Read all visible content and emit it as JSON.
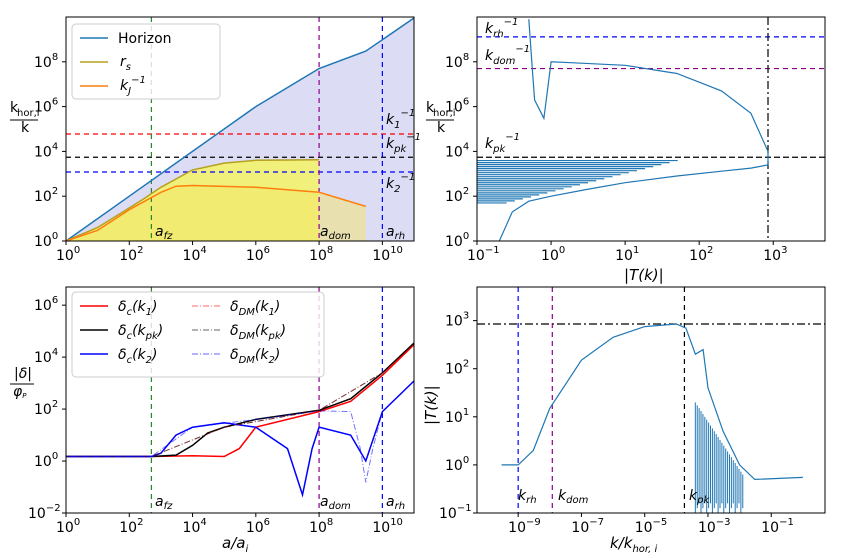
{
  "colors": {
    "horizon": "#1f77b4",
    "rs": "#b5a020",
    "kj": "#ff7f0e",
    "red": "#ff0000",
    "black": "#000000",
    "blue": "#0000ff",
    "green": "#228b22",
    "purple": "#8b008b",
    "fillHorizon": "#dcdcf5",
    "fillRs": "#f0f07a"
  },
  "chart_data": [
    {
      "id": "top-left",
      "type": "line",
      "xlim": [
        1,
        100000000000
      ],
      "ylim": [
        1,
        10000000000
      ],
      "xscale": "log",
      "yscale": "log",
      "xticks": [
        {
          "b": "10",
          "e": "0"
        },
        {
          "b": "10",
          "e": "2"
        },
        {
          "b": "10",
          "e": "4"
        },
        {
          "b": "10",
          "e": "6"
        },
        {
          "b": "10",
          "e": "8"
        },
        {
          "b": "10",
          "e": "10"
        }
      ],
      "yticks": [
        {
          "b": "10",
          "e": "0"
        },
        {
          "b": "10",
          "e": "2"
        },
        {
          "b": "10",
          "e": "4"
        },
        {
          "b": "10",
          "e": "6"
        },
        {
          "b": "10",
          "e": "8"
        }
      ],
      "ylabel": {
        "num": "k_hor,i",
        "den": "k"
      },
      "legend": [
        "Horizon",
        "r_s",
        "k_J^-1"
      ],
      "series": [
        {
          "name": "Horizon",
          "x": [
            1,
            100,
            10000,
            1000000,
            100000000,
            3000000000,
            100000000000
          ],
          "y": [
            1,
            100,
            10000,
            1000000,
            50000000,
            300000000,
            9000000000
          ]
        },
        {
          "name": "r_s",
          "x": [
            1,
            10,
            100,
            300,
            1000,
            10000,
            100000,
            1000000,
            100000000
          ],
          "y": [
            1,
            4,
            30,
            80,
            250,
            1500,
            3000,
            4000,
            4200
          ]
        },
        {
          "name": "k_J^-1",
          "x": [
            1,
            10,
            100,
            1000,
            3000,
            10000,
            1000000,
            100000000,
            3000000000
          ],
          "y": [
            1,
            3,
            25,
            150,
            280,
            300,
            250,
            150,
            35
          ]
        }
      ],
      "hlines": [
        {
          "label": "k_1^-1",
          "y": 60000,
          "color": "red"
        },
        {
          "label": "k_pk^-1",
          "y": 5500,
          "color": "black"
        },
        {
          "label": "k_2^-1",
          "y": 1200,
          "color": "blue"
        }
      ],
      "vlines": [
        {
          "label": "a_fz",
          "x": 500,
          "color": "green"
        },
        {
          "label": "a_dom",
          "x": 100000000,
          "color": "purple"
        },
        {
          "label": "a_rh",
          "x": 10000000000,
          "color": "blue"
        }
      ]
    },
    {
      "id": "top-right",
      "type": "line",
      "xlim": [
        0.1,
        5000
      ],
      "ylim": [
        1,
        10000000000
      ],
      "xscale": "log",
      "yscale": "log",
      "xticks": [
        {
          "b": "10",
          "e": "−1"
        },
        {
          "b": "10",
          "e": "0"
        },
        {
          "b": "10",
          "e": "1"
        },
        {
          "b": "10",
          "e": "2"
        },
        {
          "b": "10",
          "e": "3"
        }
      ],
      "yticks": [
        {
          "b": "10",
          "e": "0"
        },
        {
          "b": "10",
          "e": "2"
        },
        {
          "b": "10",
          "e": "4"
        },
        {
          "b": "10",
          "e": "6"
        },
        {
          "b": "10",
          "e": "8"
        }
      ],
      "xlabel": "|T(k)|",
      "ylabel": {
        "num": "k_hor,i",
        "den": "k"
      },
      "series": [
        {
          "name": "T(k)",
          "x": [
            0.5,
            0.55,
            0.6,
            0.8,
            1,
            2,
            10,
            50,
            200,
            500,
            850,
            850,
            500,
            200,
            50,
            10,
            3,
            1,
            0.5,
            0.3,
            0.2
          ],
          "y": [
            8000000000,
            100000000,
            2000000,
            300000,
            100000000,
            90000000,
            70000000,
            30000000,
            5000000,
            500000,
            10000,
            2500,
            1800,
            1300,
            800,
            400,
            200,
            100,
            60,
            20,
            1
          ]
        }
      ],
      "hlines": [
        {
          "label": "k_rh^-1",
          "y": 1300000000,
          "color": "blue"
        },
        {
          "label": "k_dom^-1",
          "y": 50000000,
          "color": "purple"
        },
        {
          "label": "k_pk^-1",
          "y": 5500,
          "color": "black"
        }
      ],
      "vlines": [
        {
          "x": 850,
          "color": "black"
        }
      ]
    },
    {
      "id": "bottom-left",
      "type": "line",
      "xlim": [
        1,
        100000000000
      ],
      "ylim": [
        0.01,
        5000000
      ],
      "xscale": "log",
      "yscale": "log",
      "xticks": [
        {
          "b": "10",
          "e": "0"
        },
        {
          "b": "10",
          "e": "2"
        },
        {
          "b": "10",
          "e": "4"
        },
        {
          "b": "10",
          "e": "6"
        },
        {
          "b": "10",
          "e": "8"
        },
        {
          "b": "10",
          "e": "10"
        }
      ],
      "yticks": [
        {
          "b": "10",
          "e": "−2"
        },
        {
          "b": "10",
          "e": "0"
        },
        {
          "b": "10",
          "e": "2"
        },
        {
          "b": "10",
          "e": "4"
        },
        {
          "b": "10",
          "e": "6"
        }
      ],
      "xlabel": "a/a_i",
      "ylabel": {
        "num": "|δ|",
        "den": "φ_P"
      },
      "legend": [
        "δ_c(k_1)",
        "δ_c(k_pk)",
        "δ_c(k_2)",
        "δ_DM(k_1)",
        "δ_DM(k_pk)",
        "δ_DM(k_2)"
      ],
      "series": [
        {
          "name": "δ_c(k_1)",
          "x": [
            1,
            500,
            10000,
            100000,
            300000,
            1000000,
            100000000,
            1000000000,
            10000000000,
            100000000000
          ],
          "y": [
            1.5,
            1.5,
            1.6,
            1.5,
            3,
            20,
            80,
            200,
            2000,
            30000
          ]
        },
        {
          "name": "δ_c(k_pk)",
          "x": [
            1,
            500,
            3000,
            10000,
            30000,
            100000,
            1000000,
            100000000,
            1000000000,
            10000000000,
            100000000000
          ],
          "y": [
            1.5,
            1.5,
            1.7,
            4,
            12,
            20,
            40,
            90,
            250,
            2500,
            35000
          ]
        },
        {
          "name": "δ_c(k_2)",
          "x": [
            1,
            500,
            1000,
            3000,
            10000,
            100000,
            1000000,
            10000000,
            30000000,
            60000000,
            100000000,
            1000000000,
            3000000000,
            10000000000,
            100000000000
          ],
          "y": [
            1.5,
            1.5,
            2,
            10,
            20,
            30,
            20,
            3,
            0.05,
            3,
            20,
            10,
            1,
            80,
            1200
          ]
        },
        {
          "name": "δ_DM(k_1)",
          "x": [
            1,
            500,
            100000,
            100000000,
            10000000000,
            100000000000
          ],
          "y": [
            1.5,
            1.5,
            20,
            90,
            2500,
            30000
          ]
        },
        {
          "name": "δ_DM(k_pk)",
          "x": [
            1,
            500,
            100000,
            100000000,
            10000000000,
            100000000000
          ],
          "y": [
            1.5,
            1.5,
            20,
            90,
            2500,
            35000
          ]
        },
        {
          "name": "δ_DM(k_2)",
          "x": [
            1,
            500,
            10000,
            1000000,
            100000000,
            1000000000,
            2000000000,
            3000000000,
            5000000000,
            10000000000,
            100000000000
          ],
          "y": [
            1.5,
            1.5,
            20,
            40,
            85,
            80,
            3,
            0.15,
            3,
            80,
            1200
          ]
        }
      ],
      "vlines": [
        {
          "label": "a_fz",
          "x": 500,
          "color": "green"
        },
        {
          "label": "a_dom",
          "x": 100000000,
          "color": "purple"
        },
        {
          "label": "a_rh",
          "x": 10000000000,
          "color": "blue"
        }
      ]
    },
    {
      "id": "bottom-right",
      "type": "line",
      "xlim": [
        5e-11,
        5
      ],
      "ylim": [
        0.1,
        5000
      ],
      "xscale": "log",
      "yscale": "log",
      "xticks": [
        {
          "b": "10",
          "e": "−9"
        },
        {
          "b": "10",
          "e": "−7"
        },
        {
          "b": "10",
          "e": "−5"
        },
        {
          "b": "10",
          "e": "−3"
        },
        {
          "b": "10",
          "e": "−1"
        }
      ],
      "yticks": [
        {
          "b": "10",
          "e": "−1"
        },
        {
          "b": "10",
          "e": "0"
        },
        {
          "b": "10",
          "e": "1"
        },
        {
          "b": "10",
          "e": "2"
        },
        {
          "b": "10",
          "e": "3"
        }
      ],
      "xlabel": "k/k_hor,i",
      "ylabel": "|T(k)|",
      "series": [
        {
          "name": "T(k)",
          "x": [
            3e-10,
            1e-09,
            3e-09,
            1e-08,
            1e-07,
            1e-06,
            1e-05,
            0.0001,
            0.0002,
            0.0004,
            0.0007,
            0.001,
            0.003,
            0.01,
            0.03,
            1
          ],
          "y": [
            1,
            1,
            2,
            15,
            150,
            450,
            750,
            850,
            700,
            200,
            250,
            40,
            5,
            1,
            0.5,
            0.55
          ]
        }
      ],
      "hlines": [
        {
          "y": 850,
          "color": "black"
        }
      ],
      "vlines": [
        {
          "label": "k_rh",
          "x": 1e-09,
          "color": "blue"
        },
        {
          "label": "k_dom",
          "x": 1.2e-08,
          "color": "purple"
        },
        {
          "label": "k_pk",
          "x": 0.00018,
          "color": "black"
        }
      ]
    }
  ]
}
